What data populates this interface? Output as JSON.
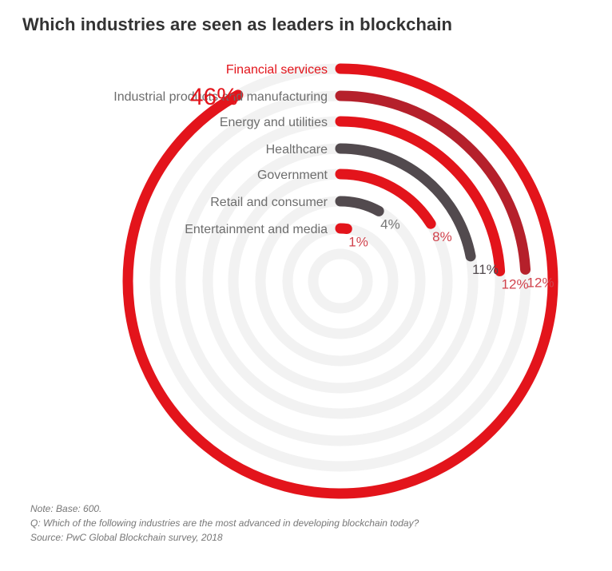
{
  "chart_data": {
    "type": "radial-bar",
    "title": "Which industries are seen as leaders in blockchain",
    "categories": [
      "Financial services",
      "Industrial products and manufacturing",
      "Energy and utilities",
      "Healthcare",
      "Government",
      "Retail and consumer",
      "Entertainment and media"
    ],
    "values": [
      46,
      12,
      12,
      11,
      8,
      4,
      1
    ],
    "value_labels": [
      "46%",
      "12%",
      "12%",
      "11%",
      "8%",
      "4%",
      "1%"
    ],
    "unit": "%",
    "max_value": 50,
    "grid": true,
    "colors": [
      "#e3141b",
      "#b5202b",
      "#e3141b",
      "#524a4e",
      "#e3141b",
      "#524a4e",
      "#e3141b"
    ],
    "label_colors": [
      "#e3141b",
      "#6d6d6d",
      "#6d6d6d",
      "#6d6d6d",
      "#6d6d6d",
      "#6d6d6d",
      "#6d6d6d"
    ],
    "value_label_colors": [
      "#e3141b",
      "#d1434d",
      "#d1434d",
      "#524a4e",
      "#d1434d",
      "#777777",
      "#d1434d"
    ],
    "track_color": "#f2f2f2"
  },
  "notes": [
    "Note: Base: 600.",
    "Q: Which of the following industries are the most advanced in developing blockchain today?",
    "Source: PwC Global Blockchain survey, 2018"
  ]
}
